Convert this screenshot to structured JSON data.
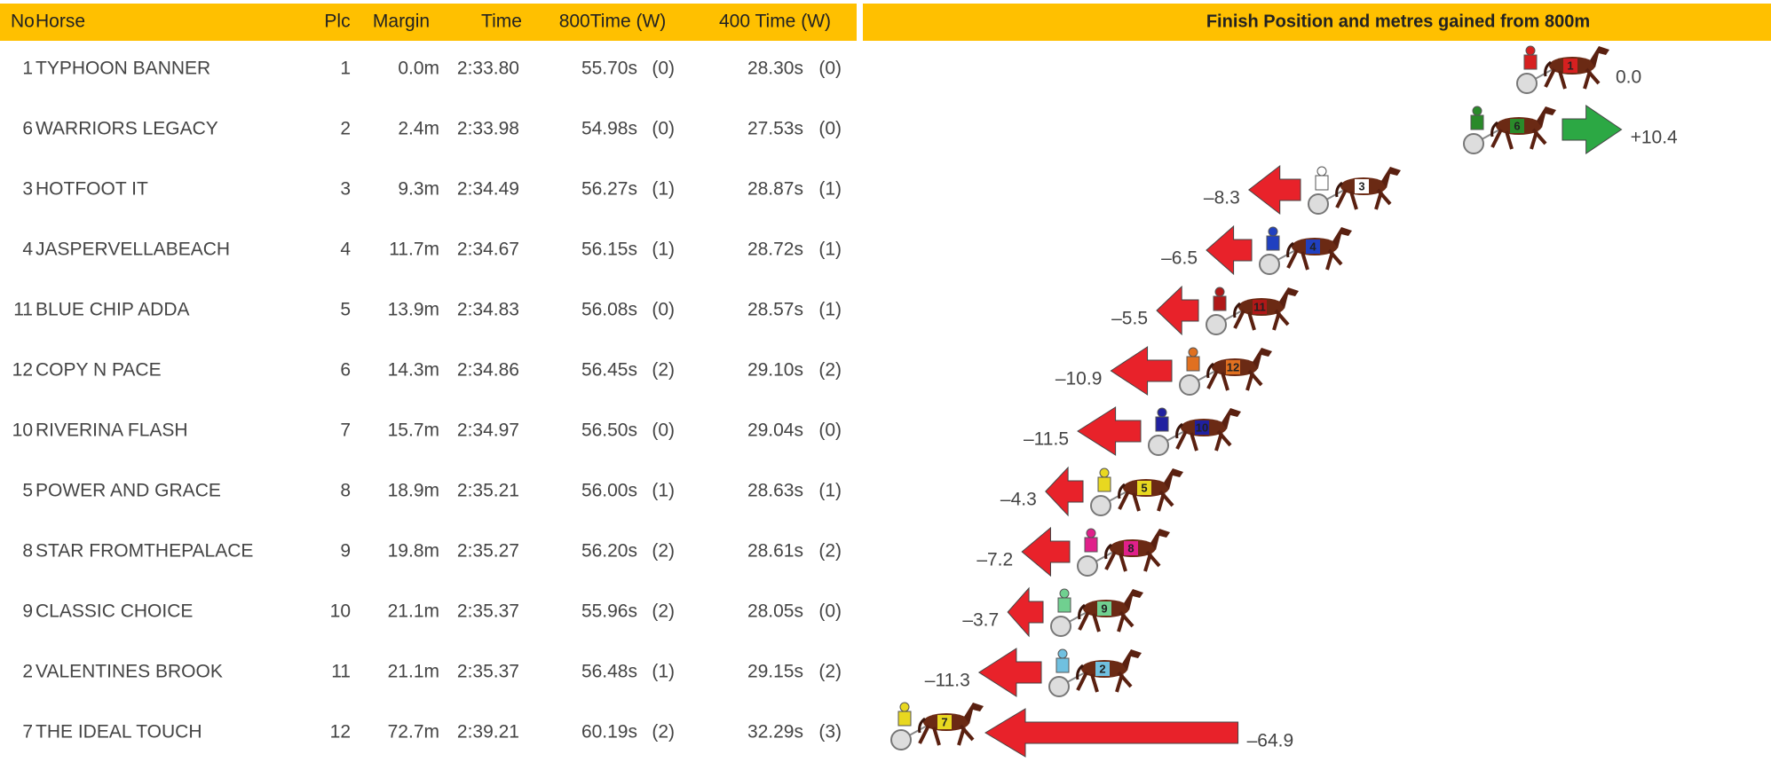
{
  "table": {
    "columns": [
      "No",
      "Horse",
      "Plc",
      "Margin",
      "Time",
      "800Time (W)",
      "400 Time (W)"
    ],
    "rows": [
      {
        "no": "1",
        "horse": "TYPHOON BANNER",
        "plc": "1",
        "margin": "0.0m",
        "time": "2:33.80",
        "t800": "55.70s",
        "w800": "(0)",
        "t400": "28.30s",
        "w400": "(0)"
      },
      {
        "no": "6",
        "horse": "WARRIORS LEGACY",
        "plc": "2",
        "margin": "2.4m",
        "time": "2:33.98",
        "t800": "54.98s",
        "w800": "(0)",
        "t400": "27.53s",
        "w400": "(0)"
      },
      {
        "no": "3",
        "horse": "HOTFOOT IT",
        "plc": "3",
        "margin": "9.3m",
        "time": "2:34.49",
        "t800": "56.27s",
        "w800": "(1)",
        "t400": "28.87s",
        "w400": "(1)"
      },
      {
        "no": "4",
        "horse": "JASPERVELLABEACH",
        "plc": "4",
        "margin": "11.7m",
        "time": "2:34.67",
        "t800": "56.15s",
        "w800": "(1)",
        "t400": "28.72s",
        "w400": "(1)"
      },
      {
        "no": "11",
        "horse": "BLUE CHIP ADDA",
        "plc": "5",
        "margin": "13.9m",
        "time": "2:34.83",
        "t800": "56.08s",
        "w800": "(0)",
        "t400": "28.57s",
        "w400": "(1)"
      },
      {
        "no": "12",
        "horse": "COPY N PACE",
        "plc": "6",
        "margin": "14.3m",
        "time": "2:34.86",
        "t800": "56.45s",
        "w800": "(2)",
        "t400": "29.10s",
        "w400": "(2)"
      },
      {
        "no": "10",
        "horse": "RIVERINA FLASH",
        "plc": "7",
        "margin": "15.7m",
        "time": "2:34.97",
        "t800": "56.50s",
        "w800": "(0)",
        "t400": "29.04s",
        "w400": "(0)"
      },
      {
        "no": "5",
        "horse": "POWER AND GRACE",
        "plc": "8",
        "margin": "18.9m",
        "time": "2:35.21",
        "t800": "56.00s",
        "w800": "(1)",
        "t400": "28.63s",
        "w400": "(1)"
      },
      {
        "no": "8",
        "horse": "STAR FROMTHEPALACE",
        "plc": "9",
        "margin": "19.8m",
        "time": "2:35.27",
        "t800": "56.20s",
        "w800": "(2)",
        "t400": "28.61s",
        "w400": "(2)"
      },
      {
        "no": "9",
        "horse": "CLASSIC CHOICE",
        "plc": "10",
        "margin": "21.1m",
        "time": "2:35.37",
        "t800": "55.96s",
        "w800": "(2)",
        "t400": "28.05s",
        "w400": "(0)"
      },
      {
        "no": "2",
        "horse": "VALENTINES BROOK",
        "plc": "11",
        "margin": "21.1m",
        "time": "2:35.37",
        "t800": "56.48s",
        "w800": "(1)",
        "t400": "29.15s",
        "w400": "(2)"
      },
      {
        "no": "7",
        "horse": "THE IDEAL TOUCH",
        "plc": "12",
        "margin": "72.7m",
        "time": "2:39.21",
        "t800": "60.19s",
        "w800": "(2)",
        "t400": "32.29s",
        "w400": "(3)"
      }
    ]
  },
  "chart": {
    "title": "Finish Position and metres gained from 800m",
    "gains": [
      0,
      10.4,
      -8.3,
      -6.5,
      -5.5,
      -10.9,
      -11.5,
      -4.3,
      -7.2,
      -3.7,
      -11.3,
      -64.9
    ],
    "gain_labels": [
      "0.0",
      "+10.4",
      "–8.3",
      "–6.5",
      "–5.5",
      "–10.9",
      "–11.5",
      "–4.3",
      "–7.2",
      "–3.7",
      "–11.3",
      "–64.9"
    ],
    "gain_color": "#2ca844",
    "loss_color": "#e8222a",
    "silk_colors": [
      "#d62020",
      "#2a8a2a",
      "#ffffff",
      "#2040c0",
      "#b01818",
      "#e07020",
      "#2020a0",
      "#e8d820",
      "#e0208a",
      "#70d090",
      "#70c0e0",
      "#e8d820"
    ]
  }
}
